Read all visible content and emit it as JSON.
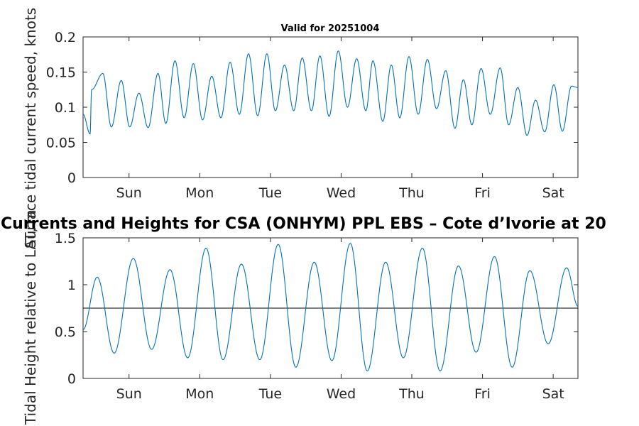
{
  "chart_data": [
    {
      "type": "line",
      "title": "Valid for 20251004",
      "ylabel": "Surface tidal current speed, knots",
      "xlabel": "",
      "xlim": [
        0,
        7
      ],
      "ylim": [
        0,
        0.2
      ],
      "yticks": [
        "0",
        "0.05",
        "0.1",
        "0.15",
        "0.2"
      ],
      "ytick_values": [
        0,
        0.05,
        0.1,
        0.15,
        0.2
      ],
      "xticks": [
        "Sun",
        "Mon",
        "Tue",
        "Wed",
        "Thu",
        "Fri",
        "Sat"
      ],
      "xtick_values": [
        0.65,
        1.65,
        2.65,
        3.65,
        4.65,
        5.65,
        6.65
      ],
      "series_color": "#0072BD",
      "series": [
        {
          "name": "current speed",
          "x": [
            0.0,
            0.12,
            0.28,
            0.54,
            0.79,
            1.06,
            1.3,
            1.56,
            1.82,
            2.08,
            2.34,
            2.6,
            2.85,
            3.1,
            3.35,
            3.61,
            3.87,
            4.1,
            4.36,
            4.61,
            4.87,
            5.13,
            5.38,
            5.63,
            5.9,
            6.15,
            6.4,
            6.66,
            6.91,
            7.0
          ],
          "values": [
            0.09,
            0.125,
            0.148,
            0.138,
            0.12,
            0.148,
            0.166,
            0.162,
            0.144,
            0.164,
            0.176,
            0.176,
            0.16,
            0.17,
            0.173,
            0.18,
            0.169,
            0.166,
            0.16,
            0.172,
            0.168,
            0.152,
            0.139,
            0.155,
            0.156,
            0.128,
            0.11,
            0.132,
            0.13,
            0.128
          ],
          "minima_x": [
            0.1,
            0.4,
            0.66,
            0.92,
            1.17,
            1.43,
            1.69,
            1.95,
            2.21,
            2.47,
            2.72,
            2.98,
            3.23,
            3.48,
            3.74,
            4.0,
            4.24,
            4.48,
            4.74,
            5.0,
            5.26,
            5.5,
            5.76,
            6.02,
            6.28,
            6.53,
            6.78
          ],
          "minima": [
            0.062,
            0.072,
            0.072,
            0.071,
            0.077,
            0.085,
            0.082,
            0.085,
            0.09,
            0.088,
            0.095,
            0.095,
            0.095,
            0.087,
            0.1,
            0.095,
            0.08,
            0.085,
            0.09,
            0.098,
            0.07,
            0.075,
            0.09,
            0.075,
            0.06,
            0.065,
            0.066
          ]
        }
      ]
    },
    {
      "type": "line",
      "title": "Currents and Heights for CSA (ONHYM) PPL EBS  – Cote d’Ivorie at 20",
      "ylabel": "Tidal Height relative to LAT, m",
      "xlabel": "",
      "xlim": [
        0,
        7
      ],
      "ylim": [
        0,
        1.5
      ],
      "yticks": [
        "0",
        "0.5",
        "1",
        "1.5"
      ],
      "ytick_values": [
        0,
        0.5,
        1,
        1.5
      ],
      "xticks": [
        "Sun",
        "Mon",
        "Tue",
        "Wed",
        "Thu",
        "Fri",
        "Sat"
      ],
      "xtick_values": [
        0.65,
        1.65,
        2.65,
        3.65,
        4.65,
        5.65,
        6.65
      ],
      "reference_line": 0.75,
      "series_color": "#0072BD",
      "reference_color": "#000000",
      "series": [
        {
          "name": "tidal height",
          "x": [
            0.0,
            0.2,
            0.44,
            0.71,
            0.97,
            1.23,
            1.48,
            1.74,
            1.98,
            2.24,
            2.5,
            2.76,
            3.01,
            3.27,
            3.52,
            3.78,
            4.02,
            4.28,
            4.53,
            4.8,
            5.05,
            5.31,
            5.56,
            5.82,
            6.07,
            6.32,
            6.58,
            6.84,
            7.0
          ],
          "values": [
            0.52,
            1.08,
            0.27,
            1.28,
            0.31,
            1.16,
            0.22,
            1.39,
            0.2,
            1.22,
            0.2,
            1.43,
            0.12,
            1.24,
            0.19,
            1.44,
            0.08,
            1.24,
            0.22,
            1.39,
            0.08,
            1.2,
            0.28,
            1.3,
            0.12,
            1.15,
            0.37,
            1.18,
            0.77
          ]
        }
      ]
    }
  ]
}
